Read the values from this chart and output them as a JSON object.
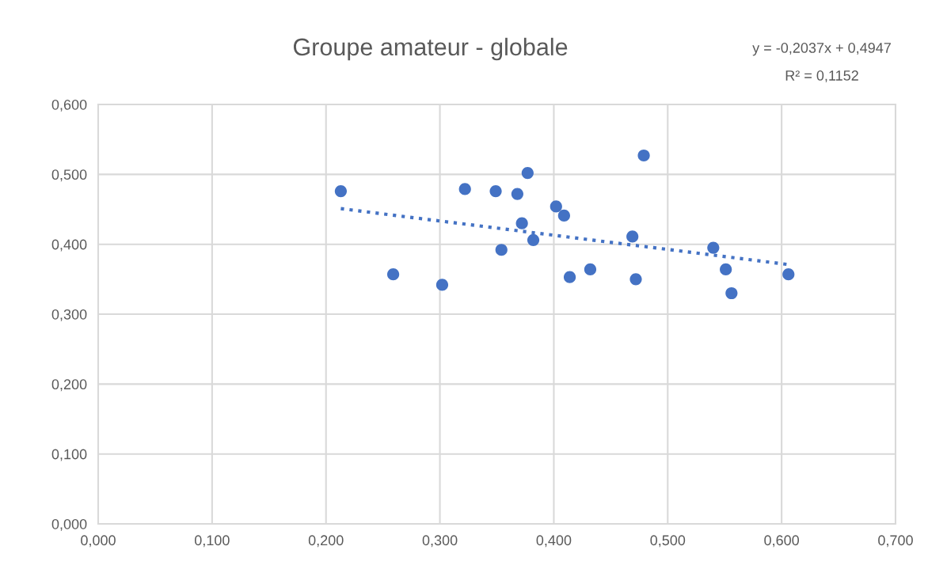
{
  "chart_data": {
    "type": "scatter",
    "title": "Groupe amateur - globale",
    "annotations": [
      "y = -0,2037x + 0,4947",
      "R² = 0,1152"
    ],
    "series": [
      {
        "color": "#4472c4",
        "marker": "circle",
        "x": [
          0.213,
          0.259,
          0.302,
          0.322,
          0.349,
          0.368,
          0.377,
          0.372,
          0.354,
          0.382,
          0.402,
          0.409,
          0.414,
          0.432,
          0.479,
          0.469,
          0.472,
          0.54,
          0.551,
          0.556,
          0.606
        ],
        "values": [
          0.476,
          0.357,
          0.342,
          0.479,
          0.476,
          0.472,
          0.502,
          0.43,
          0.392,
          0.406,
          0.454,
          0.441,
          0.353,
          0.364,
          0.527,
          0.411,
          0.35,
          0.395,
          0.364,
          0.33,
          0.357
        ]
      },
      {
        "type": "line",
        "color": "#4472c4",
        "line_style": "dotted",
        "x": [
          0.213,
          0.606
        ],
        "values": [
          0.451,
          0.371
        ]
      }
    ],
    "xlim": [
      0,
      0.7
    ],
    "ylim": [
      0,
      0.6
    ],
    "xticks": [
      {
        "value": 0,
        "label": "0,000"
      },
      {
        "value": 0.1,
        "label": "0,100"
      },
      {
        "value": 0.2,
        "label": "0,200"
      },
      {
        "value": 0.3,
        "label": "0,300"
      },
      {
        "value": 0.4,
        "label": "0,400"
      },
      {
        "value": 0.5,
        "label": "0,500"
      },
      {
        "value": 0.6,
        "label": "0,600"
      },
      {
        "value": 0.7,
        "label": "0,700"
      }
    ],
    "yticks": [
      {
        "value": 0,
        "label": "0,000"
      },
      {
        "value": 0.1,
        "label": "0,100"
      },
      {
        "value": 0.2,
        "label": "0,200"
      },
      {
        "value": 0.3,
        "label": "0,300"
      },
      {
        "value": 0.4,
        "label": "0,400"
      },
      {
        "value": 0.5,
        "label": "0,500"
      },
      {
        "value": 0.6,
        "label": "0,600"
      }
    ],
    "grid": true
  }
}
